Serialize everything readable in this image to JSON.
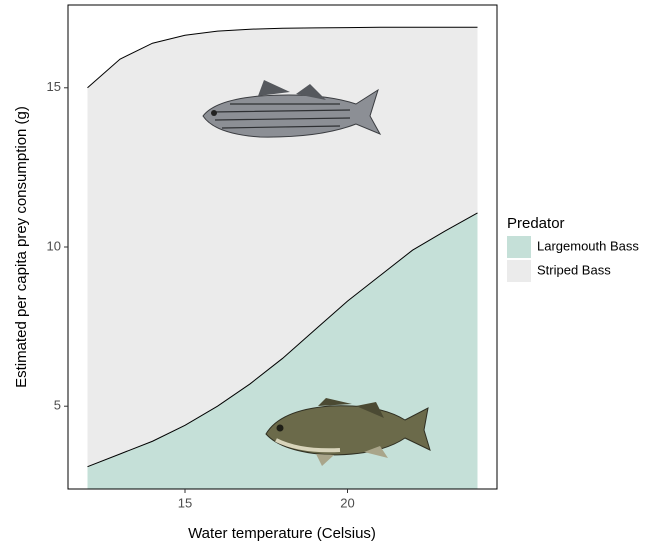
{
  "chart_data": {
    "type": "area",
    "x_label": "Water temperature (Celsius)",
    "y_label": "Estimated per capita prey consumption (g)",
    "legend_title": "Predator",
    "x": [
      12,
      13,
      14,
      15,
      16,
      17,
      18,
      19,
      20,
      21,
      22,
      23,
      24
    ],
    "series": [
      {
        "name": "Largemouth Bass",
        "color": "#c5e0d8",
        "values": [
          3.1,
          3.5,
          3.9,
          4.4,
          5.0,
          5.7,
          6.5,
          7.4,
          8.3,
          9.1,
          9.9,
          10.5,
          11.07
        ]
      },
      {
        "name": "Striped Bass",
        "color": "#ebebeb",
        "values": [
          15.0,
          15.9,
          16.4,
          16.65,
          16.78,
          16.84,
          16.87,
          16.88,
          16.89,
          16.9,
          16.9,
          16.9,
          16.9
        ]
      }
    ],
    "xlim": [
      11.4,
      24.6
    ],
    "xticks": [
      15,
      20
    ],
    "ylim": [
      2.4,
      17.6
    ],
    "yticks": [
      5,
      10,
      15
    ],
    "legend": "right"
  }
}
